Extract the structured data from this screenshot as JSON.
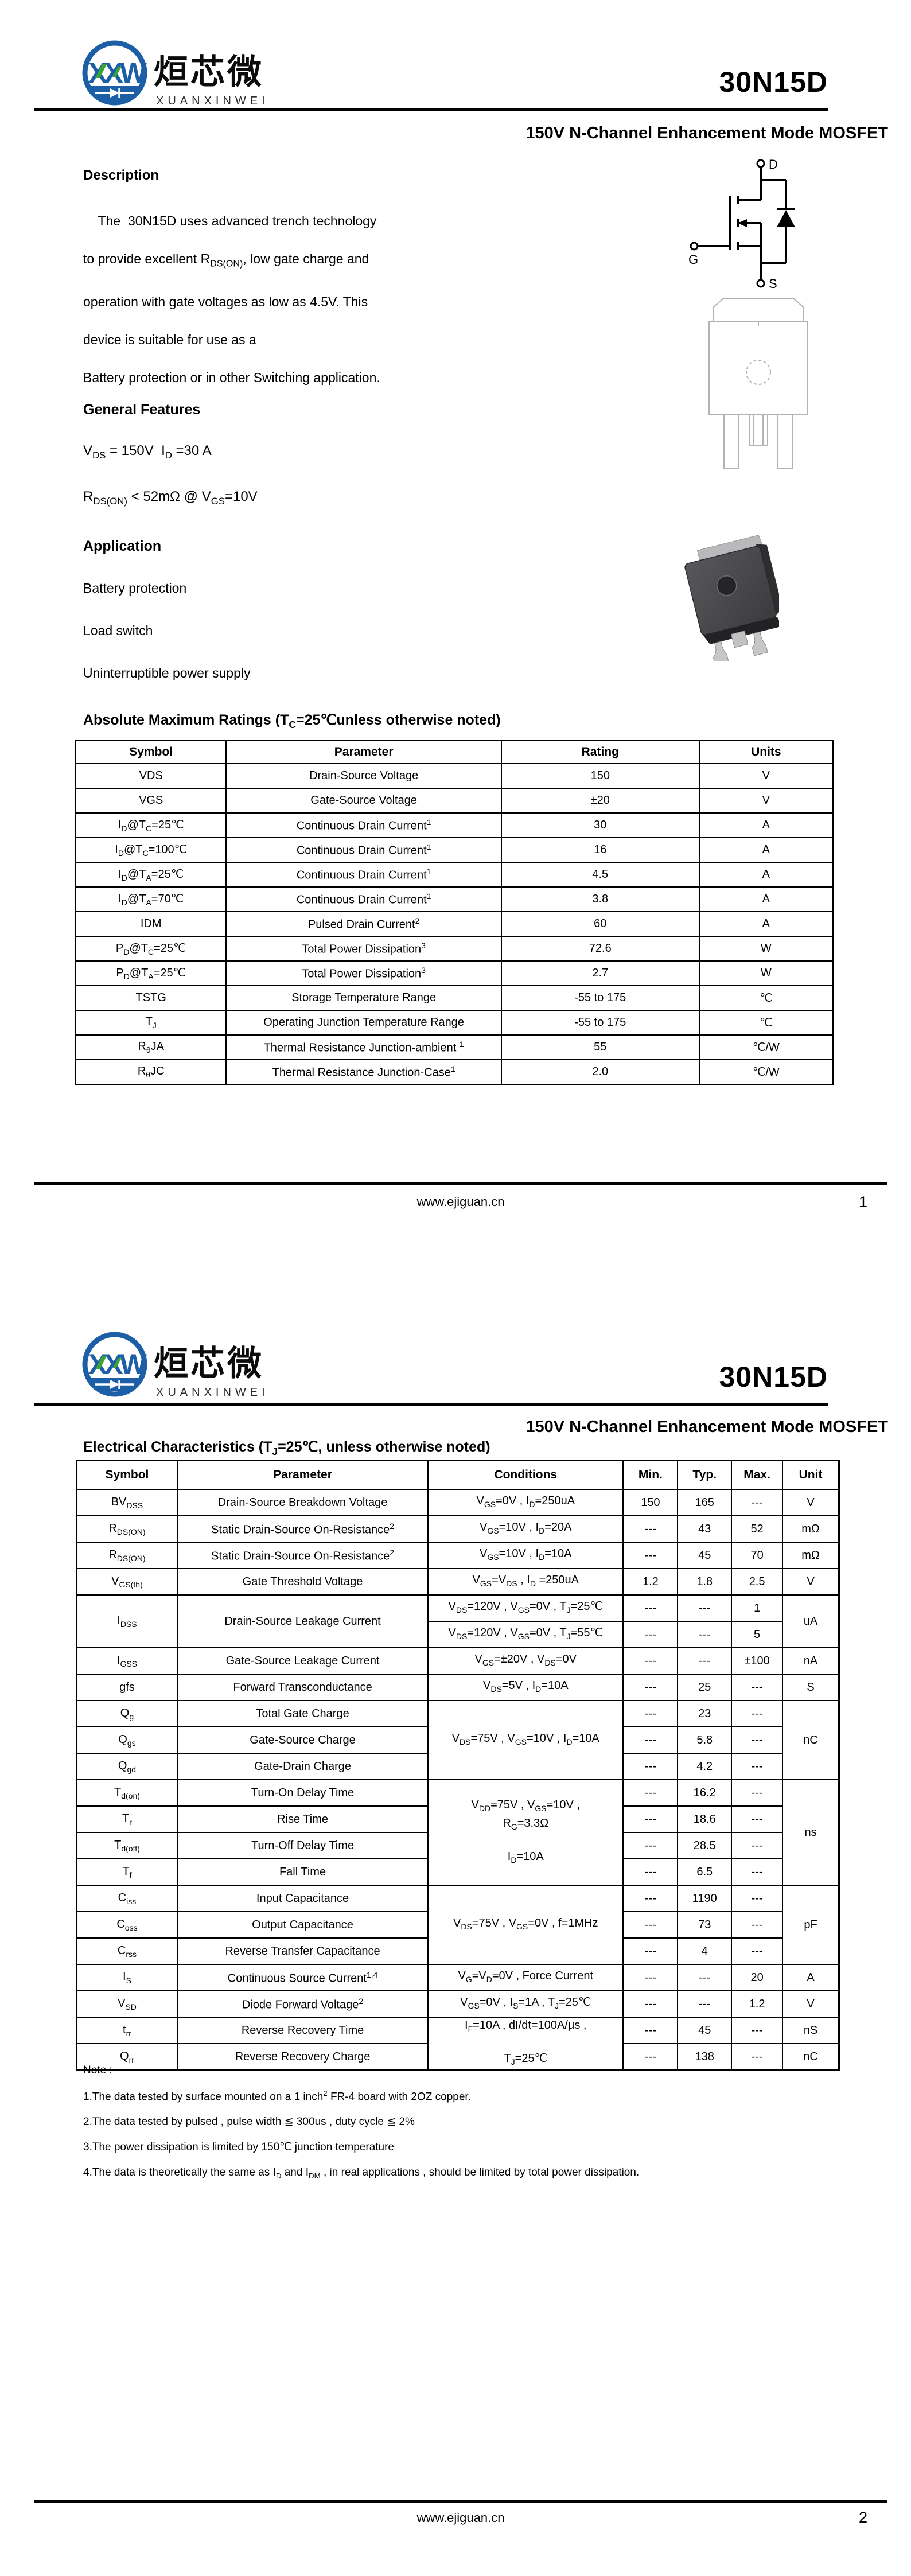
{
  "brand": {
    "mark_letters": "XXW",
    "name_cn": "烜芯微",
    "name_en": "XUANXINWEI",
    "blue": "#1d5fa7",
    "green": "#3aa435"
  },
  "part_number": "30N15D",
  "subtitle": "150V N-Channel Enhancement Mode MOSFET",
  "footer": {
    "url": "www.ejiguan.cn",
    "page1": "1",
    "page2": "2"
  },
  "page1": {
    "description": {
      "heading": "Description",
      "lines": [
        "&nbsp;&nbsp;&nbsp;&nbsp;The&nbsp; 30N15D uses advanced trench technology",
        "to provide excellent R<sub>DS(ON)</sub>, low gate charge and",
        "operation with gate voltages as low as 4.5V. This",
        "device is suitable for use as a",
        "Battery protection or in other Switching application."
      ]
    },
    "general_features": {
      "heading": "General Features",
      "line1": "V<sub>DS</sub> = 150V&nbsp;&nbsp;I<sub>D</sub> =30 A",
      "line2": "R<sub>DS(ON)</sub> &lt; 52mΩ @ V<sub>GS</sub>=10V"
    },
    "application": {
      "heading": "Application",
      "items": [
        "Battery protection",
        "Load switch",
        "Uninterruptible power supply"
      ]
    },
    "mosfet_symbol_labels": {
      "d": "D",
      "g": "G",
      "s": "S"
    },
    "abs_max": {
      "title": "Absolute Maximum Ratings (T<sub>C</sub>=25℃unless otherwise noted)",
      "headers": [
        "Symbol",
        "Parameter",
        "Rating",
        "Units"
      ],
      "col_widths": [
        "19.9%",
        "36.3%",
        "26.1%",
        "17.7%"
      ],
      "rows": [
        [
          "VDS",
          "Drain-Source Voltage",
          "150",
          "V"
        ],
        [
          "VGS",
          "Gate-Source Voltage",
          "±20",
          "V"
        ],
        [
          "I<sub>D</sub>@T<sub>C</sub>=25℃",
          "Continuous Drain Current<sup>1</sup>",
          "30",
          "A"
        ],
        [
          "I<sub>D</sub>@T<sub>C</sub>=100℃",
          "Continuous Drain Current<sup>1</sup>",
          "16",
          "A"
        ],
        [
          "I<sub>D</sub>@T<sub>A</sub>=25℃",
          "Continuous Drain Current<sup>1</sup>",
          "4.5",
          "A"
        ],
        [
          "I<sub>D</sub>@T<sub>A</sub>=70℃",
          "Continuous Drain Current<sup>1</sup>",
          "3.8",
          "A"
        ],
        [
          "IDM",
          "Pulsed Drain Current<sup>2</sup>",
          "60",
          "A"
        ],
        [
          "P<sub>D</sub>@T<sub>C</sub>=25℃",
          "Total Power Dissipation<sup>3</sup>",
          "72.6",
          "W"
        ],
        [
          "P<sub>D</sub>@T<sub>A</sub>=25℃",
          "Total Power Dissipation<sup>3</sup>",
          "2.7",
          "W"
        ],
        [
          "TSTG",
          "Storage Temperature Range",
          "-55 to 175",
          "℃"
        ],
        [
          "T<sub>J</sub>",
          "Operating Junction Temperature Range",
          "-55 to 175",
          "℃"
        ],
        [
          "R<sub>θ</sub>JA",
          "Thermal Resistance Junction-ambient <sup>1</sup>",
          "55",
          "℃/W"
        ],
        [
          "R<sub>θ</sub>JC",
          "Thermal Resistance Junction-Case<sup>1</sup>",
          "2.0",
          "℃/W"
        ]
      ]
    }
  },
  "page2": {
    "elec_char": {
      "title": "Electrical Characteristics (T<sub>J</sub>=25℃, unless otherwise noted)",
      "headers": [
        "Symbol",
        "Parameter",
        "Conditions",
        "Min.",
        "Typ.",
        "Max.",
        "Unit"
      ],
      "col_widths": [
        "13.2%",
        "32.9%",
        "25.6%",
        "7.15%",
        "7.05%",
        "6.7%",
        "7.4%"
      ],
      "rows": [
        [
          "BV<sub>DSS</sub>",
          "Drain-Source Breakdown Voltage",
          {
            "h": "V<sub>GS</sub>=0V , I<sub>D</sub>=250uA",
            "c": 1
          },
          "150",
          "165",
          "---",
          "V"
        ],
        [
          "R<sub>DS(ON)</sub>",
          "Static Drain-Source On-Resistance<sup>2</sup>",
          {
            "h": "V<sub>GS</sub>=10V , I<sub>D</sub>=20A",
            "c": 1
          },
          "---",
          "43",
          "52",
          "mΩ"
        ],
        [
          "R<sub>DS(ON)</sub>",
          "Static Drain-Source On-Resistance<sup>2</sup>",
          {
            "h": "V<sub>GS</sub>=10V , I<sub>D</sub>=10A",
            "c": 1
          },
          "---",
          "45",
          "70",
          "mΩ"
        ],
        [
          "V<sub>GS(th)</sub>",
          "Gate Threshold Voltage",
          {
            "h": "V<sub>GS</sub>=V<sub>DS</sub> , I<sub>D</sub> =250uA",
            "c": 1
          },
          "1.2",
          "1.8",
          "2.5",
          "V"
        ],
        [
          {
            "h": "I<sub>DSS</sub>",
            "rs": 2
          },
          {
            "h": "Drain-Source Leakage Current",
            "rs": 2
          },
          {
            "h": "V<sub>DS</sub>=120V , V<sub>GS</sub>=0V , T<sub>J</sub>=25℃",
            "c": 1
          },
          "---",
          "---",
          "1",
          {
            "h": "uA",
            "rs": 2
          }
        ],
        [
          {
            "h": "V<sub>DS</sub>=120V , V<sub>GS</sub>=0V , T<sub>J</sub>=55℃",
            "c": 1
          },
          "---",
          "---",
          "5"
        ],
        [
          "I<sub>GSS</sub>",
          "Gate-Source Leakage Current",
          {
            "h": "V<sub>GS</sub>=±20V , V<sub>DS</sub>=0V",
            "c": 1
          },
          "---",
          "---",
          "±100",
          "nA"
        ],
        [
          "gfs",
          "Forward Transconductance",
          {
            "h": "V<sub>DS</sub>=5V , I<sub>D</sub>=10A",
            "c": 1
          },
          "---",
          "25",
          "---",
          "S"
        ],
        [
          "Q<sub>g</sub>",
          "Total Gate Charge",
          {
            "h": "V<sub>DS</sub>=75V , V<sub>GS</sub>=10V , I<sub>D</sub>=10A",
            "rs": 3,
            "c": 1
          },
          "---",
          "23",
          "---",
          {
            "h": "nC",
            "rs": 3
          }
        ],
        [
          "Q<sub>gs</sub>",
          "Gate-Source Charge",
          "---",
          "5.8",
          "---"
        ],
        [
          "Q<sub>gd</sub>",
          "Gate-Drain Charge",
          "---",
          "4.2",
          "---"
        ],
        [
          "T<sub>d(on)</sub>",
          "Turn-On Delay Time",
          {
            "h": "V<sub>DD</sub>=75V , V<sub>GS</sub>=10V ,<br>R<sub>G</sub>=3.3Ω<br><br>I<sub>D</sub>=10A",
            "rs": 4,
            "c": 1
          },
          "---",
          "16.2",
          "---",
          {
            "h": "ns",
            "rs": 4
          }
        ],
        [
          "T<sub>r</sub>",
          "Rise Time",
          "---",
          "18.6",
          "---"
        ],
        [
          "T<sub>d(off)</sub>",
          "Turn-Off Delay Time",
          "---",
          "28.5",
          "---"
        ],
        [
          "T<sub>f</sub>",
          "Fall Time",
          "---",
          "6.5",
          "---"
        ],
        [
          "C<sub>iss</sub>",
          "Input Capacitance",
          {
            "h": "V<sub>DS</sub>=75V , V<sub>GS</sub>=0V , f=1MHz",
            "rs": 3,
            "c": 1
          },
          "---",
          "1190",
          "---",
          {
            "h": "pF",
            "rs": 3
          }
        ],
        [
          "C<sub>oss</sub>",
          "Output Capacitance",
          "---",
          "73",
          "---"
        ],
        [
          "C<sub>rss</sub>",
          "Reverse Transfer Capacitance",
          "---",
          "4",
          "---"
        ],
        [
          "I<sub>S</sub>",
          "Continuous Source Current<sup>1,4</sup>",
          {
            "h": "V<sub>G</sub>=V<sub>D</sub>=0V , Force Current",
            "c": 1
          },
          "---",
          "---",
          "20",
          "A"
        ],
        [
          "V<sub>SD</sub>",
          "Diode Forward Voltage<sup>2</sup>",
          {
            "h": "V<sub>GS</sub>=0V , I<sub>S</sub>=1A , T<sub>J</sub>=25℃",
            "c": 1
          },
          "---",
          "---",
          "1.2",
          "V"
        ],
        [
          "t<sub>rr</sub>",
          "Reverse Recovery Time",
          {
            "h": "I<sub>F</sub>=10A , dI/dt=100A/μs ,<br><br>T<sub>J</sub>=25℃",
            "rs": 2,
            "c": 1
          },
          "---",
          "45",
          "---",
          "nS"
        ],
        [
          "Q<sub>rr</sub>",
          "Reverse Recovery Charge",
          "---",
          "138",
          "---",
          "nC"
        ]
      ]
    },
    "notes": {
      "heading": "Note :",
      "lines": [
        "1.The data tested by surface mounted on a 1 inch<sup>2</sup> FR-4 board with 2OZ copper.",
        "2.The data tested by pulsed , pulse width ≦ 300us , duty cycle ≦ 2%",
        "3.The power dissipation is limited by 150℃  junction temperature",
        "4.The data is theoretically the same as I<sub>D</sub> and I<sub>DM</sub> , in real applications , should be limited by total power dissipation."
      ]
    }
  }
}
